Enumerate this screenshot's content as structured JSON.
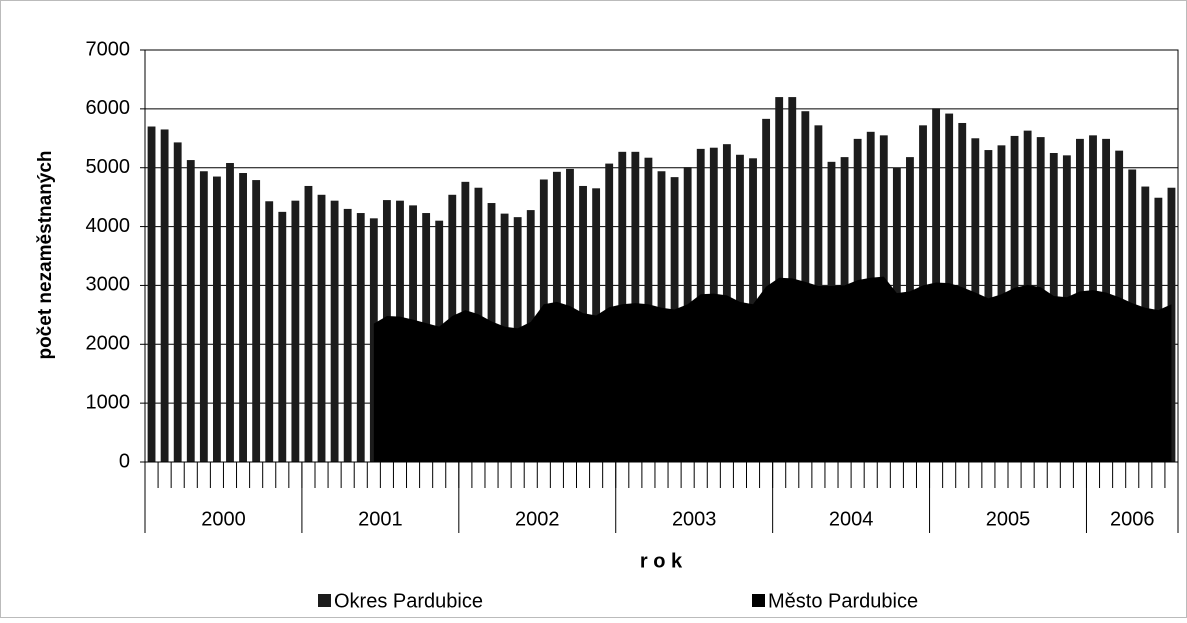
{
  "chart_data": {
    "type": "bar",
    "x_label": "r o k",
    "y_label": "počet nezaměstnaných",
    "categories": [
      null,
      null,
      null,
      null,
      null,
      null,
      null,
      null,
      null,
      null,
      null,
      null,
      null,
      null,
      null,
      null,
      null,
      null,
      null,
      null,
      null,
      null,
      null,
      null,
      null,
      null,
      null,
      null,
      null,
      null,
      null,
      null,
      null,
      null,
      null,
      null,
      null,
      null,
      null,
      null,
      null,
      null,
      null,
      null,
      null,
      null,
      null,
      null,
      null,
      null,
      null,
      null,
      null,
      null,
      null,
      null,
      null,
      null,
      null,
      null,
      null,
      null,
      null,
      null,
      null,
      null,
      null,
      null,
      null,
      null,
      null,
      null,
      null,
      null,
      null,
      null,
      null,
      null,
      null
    ],
    "groups": [
      {
        "label": "2000",
        "months": 12
      },
      {
        "label": "2001",
        "months": 12
      },
      {
        "label": "2002",
        "months": 12
      },
      {
        "label": "2003",
        "months": 12
      },
      {
        "label": "2004",
        "months": 12
      },
      {
        "label": "2005",
        "months": 12
      },
      {
        "label": "2006",
        "months": 7
      }
    ],
    "series": [
      {
        "name": "Okres Pardubice",
        "kind": "bar",
        "color": "#1c1c1c",
        "values": [
          5700,
          5650,
          5430,
          5130,
          4940,
          4850,
          5080,
          4910,
          4790,
          4430,
          4250,
          4440,
          4690,
          4540,
          4440,
          4300,
          4230,
          4140,
          4450,
          4440,
          4360,
          4230,
          4100,
          4540,
          4760,
          4660,
          4400,
          4220,
          4160,
          4280,
          4800,
          4930,
          4980,
          4690,
          4650,
          5070,
          5270,
          5270,
          5170,
          4940,
          4840,
          5010,
          5320,
          5340,
          5400,
          5220,
          5160,
          5830,
          6200,
          6200,
          5960,
          5720,
          5100,
          5180,
          5490,
          5610,
          5550,
          5000,
          5180,
          5720,
          6010,
          5920,
          5760,
          5500,
          5300,
          5380,
          5540,
          5630,
          5520,
          5250,
          5210,
          5490,
          5550,
          5490,
          5290,
          4970,
          4680,
          4490,
          4660
        ]
      },
      {
        "name": "Město Pardubice",
        "kind": "area",
        "color": "#000000",
        "values": [
          null,
          null,
          null,
          null,
          null,
          null,
          null,
          null,
          null,
          null,
          null,
          null,
          null,
          null,
          null,
          null,
          null,
          2350,
          2480,
          2470,
          2420,
          2360,
          2300,
          2480,
          2580,
          2510,
          2390,
          2300,
          2270,
          2380,
          2680,
          2720,
          2650,
          2530,
          2490,
          2630,
          2680,
          2700,
          2680,
          2620,
          2590,
          2680,
          2850,
          2860,
          2830,
          2720,
          2680,
          2980,
          3130,
          3120,
          3060,
          2990,
          2990,
          3000,
          3090,
          3130,
          3150,
          2870,
          2900,
          3000,
          3050,
          3040,
          2970,
          2880,
          2780,
          2850,
          2960,
          3010,
          2970,
          2820,
          2800,
          2900,
          2920,
          2880,
          2800,
          2700,
          2620,
          2580,
          2680
        ]
      }
    ],
    "ylim": [
      0,
      7000
    ],
    "yticks": [
      0,
      1000,
      2000,
      3000,
      4000,
      5000,
      6000,
      7000
    ],
    "grid": true
  }
}
